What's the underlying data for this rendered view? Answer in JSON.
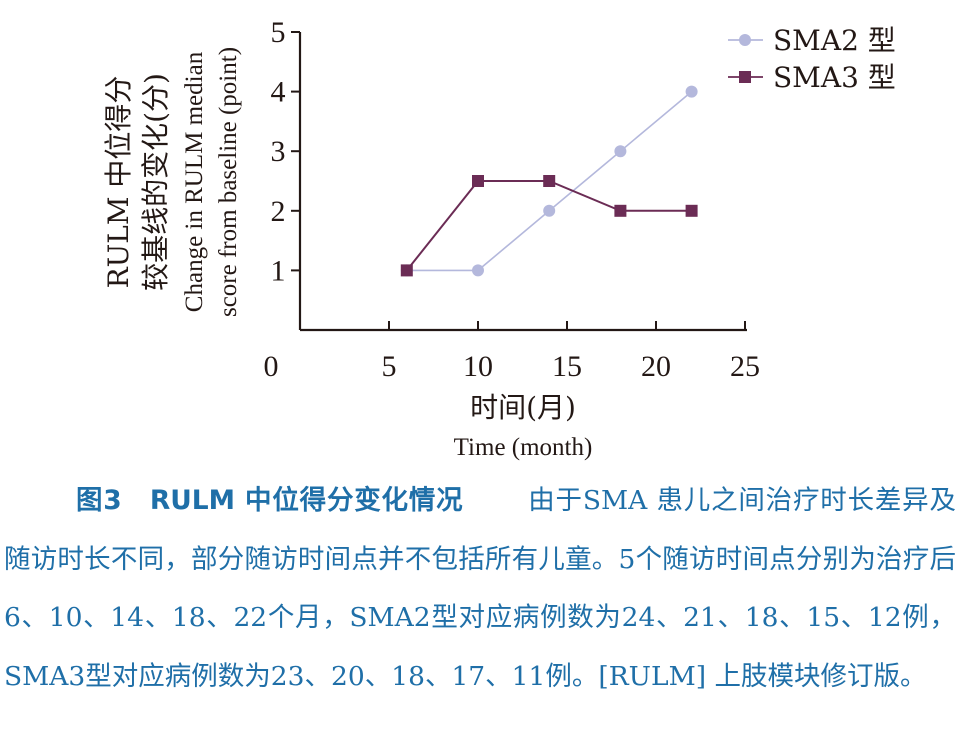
{
  "chart_data": {
    "type": "line",
    "x_ticks": [
      0,
      5,
      10,
      15,
      20,
      25
    ],
    "y_ticks": [
      1,
      2,
      3,
      4,
      5
    ],
    "xlim": [
      0,
      25
    ],
    "ylim": [
      0,
      5
    ],
    "ylabel_cn": [
      "RULM 中位得分",
      "较基线的变化(分)"
    ],
    "ylabel_en": [
      "Change in RULM median",
      "score from baseline (point)"
    ],
    "xlabel_cn": "时间(月)",
    "xlabel_en": "Time (month)",
    "legend_position": "top-right",
    "series": [
      {
        "name": "SMA2 型",
        "marker": "circle",
        "color": "#b4b8dc",
        "x": [
          6,
          10,
          14,
          18,
          22
        ],
        "y": [
          1,
          1,
          2,
          3,
          4
        ]
      },
      {
        "name": "SMA3 型",
        "marker": "square",
        "color": "#6b2c55",
        "x": [
          6,
          10,
          14,
          18,
          22
        ],
        "y": [
          1,
          2.5,
          2.5,
          2,
          2
        ]
      }
    ]
  },
  "caption": {
    "title": "图3　RULM 中位得分变化情况",
    "body": "由于SMA 患儿之间治疗时长差异及随访时长不同，部分随访时间点并不包括所有儿童。5个随访时间点分别为治疗后6、10、14、18、22个月，SMA2型对应病例数为24、21、18、15、12例，SMA3型对应病例数为23、20、18、17、11例。[RULM] 上肢模块修订版。"
  }
}
